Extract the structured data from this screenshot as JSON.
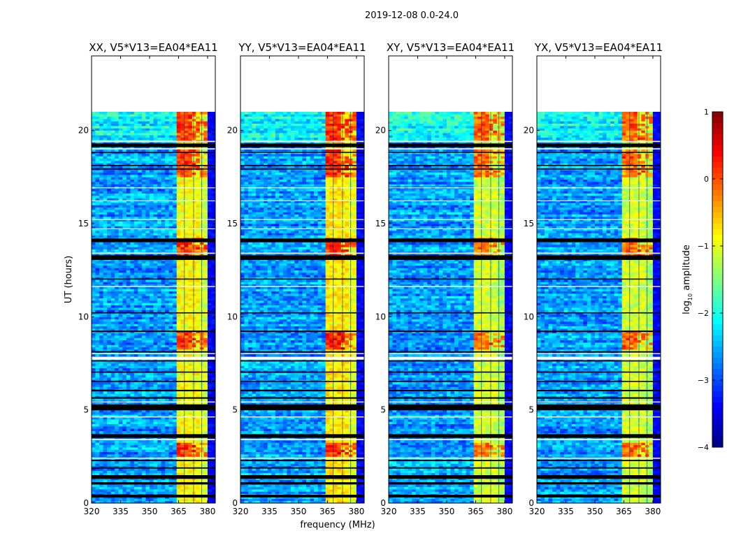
{
  "chart_data": {
    "type": "heatmap",
    "title": "2019-12-08 0.0-24.0",
    "xlabel": "frequency (MHz)",
    "ylabel": "UT (hours)",
    "xlim": [
      320,
      384
    ],
    "ylim": [
      0,
      24
    ],
    "xticks": [
      "320",
      "335",
      "350",
      "365",
      "380"
    ],
    "xtick_values": [
      320,
      335,
      350,
      365,
      380
    ],
    "yticks": [
      "0",
      "5",
      "10",
      "15",
      "20"
    ],
    "ytick_values": [
      0,
      5,
      10,
      15,
      20
    ],
    "colorbar": {
      "label_main": "log",
      "label_sub": "10",
      "label_rest": " amplitude",
      "range": [
        -4,
        1
      ],
      "ticks": [
        "1",
        "0",
        "−1",
        "−2",
        "−3",
        "−4"
      ],
      "tick_values": [
        1,
        0,
        -1,
        -2,
        -3,
        -4
      ],
      "colormap": "jet"
    },
    "data_end_hour": 21,
    "rfi_band_mhz": [
      363.5,
      380
    ],
    "rfi_gap_lines_mhz": [
      367.8,
      372.6,
      376.8
    ],
    "background_log_amp": -2.6,
    "rfi_log_amp": -0.9,
    "rfi_peak_hours": [
      [
        19.4,
        21
      ],
      [
        8.2,
        9.2
      ],
      [
        13.3,
        14.2
      ],
      [
        2.5,
        3.3
      ],
      [
        17.5,
        19
      ]
    ],
    "flagged_hours": [
      [
        0.3,
        0.45
      ],
      [
        1.0,
        1.12
      ],
      [
        1.3,
        1.5
      ],
      [
        1.85,
        1.92
      ],
      [
        2.25,
        2.32
      ],
      [
        3.5,
        3.7
      ],
      [
        4.98,
        5.3
      ],
      [
        5.6,
        5.68
      ],
      [
        6.0,
        6.08
      ],
      [
        6.5,
        6.56
      ],
      [
        7.0,
        7.06
      ],
      [
        7.6,
        7.66
      ],
      [
        8.08,
        8.15
      ],
      [
        9.18,
        9.26
      ],
      [
        10.18,
        10.24
      ],
      [
        12.0,
        12.05
      ],
      [
        13.05,
        13.3
      ],
      [
        14.0,
        14.2
      ],
      [
        17.9,
        17.96
      ],
      [
        18.1,
        18.15
      ],
      [
        18.8,
        18.85
      ],
      [
        19.1,
        19.3
      ]
    ],
    "blank_hours": [
      [
        2.38,
        2.44
      ],
      [
        3.38,
        3.44
      ],
      [
        4.6,
        4.65
      ],
      [
        5.4,
        5.45
      ],
      [
        7.7,
        7.85
      ],
      [
        8.0,
        8.05
      ],
      [
        11.6,
        11.65
      ],
      [
        13.38,
        13.44
      ],
      [
        14.7,
        14.74
      ],
      [
        15.2,
        15.24
      ],
      [
        16.2,
        16.24
      ],
      [
        16.9,
        16.94
      ],
      [
        18.98,
        19.04
      ],
      [
        19.38,
        19.44
      ]
    ],
    "series": [
      {
        "name": "XX, V5*V13=EA04*EA11",
        "rfi_offset": 0.0,
        "seed": 1
      },
      {
        "name": "YY, V5*V13=EA04*EA11",
        "rfi_offset": 0.1,
        "seed": 2
      },
      {
        "name": "XY, V5*V13=EA04*EA11",
        "rfi_offset": -0.2,
        "seed": 3
      },
      {
        "name": "YX, V5*V13=EA04*EA11",
        "rfi_offset": -0.2,
        "seed": 4
      }
    ]
  }
}
